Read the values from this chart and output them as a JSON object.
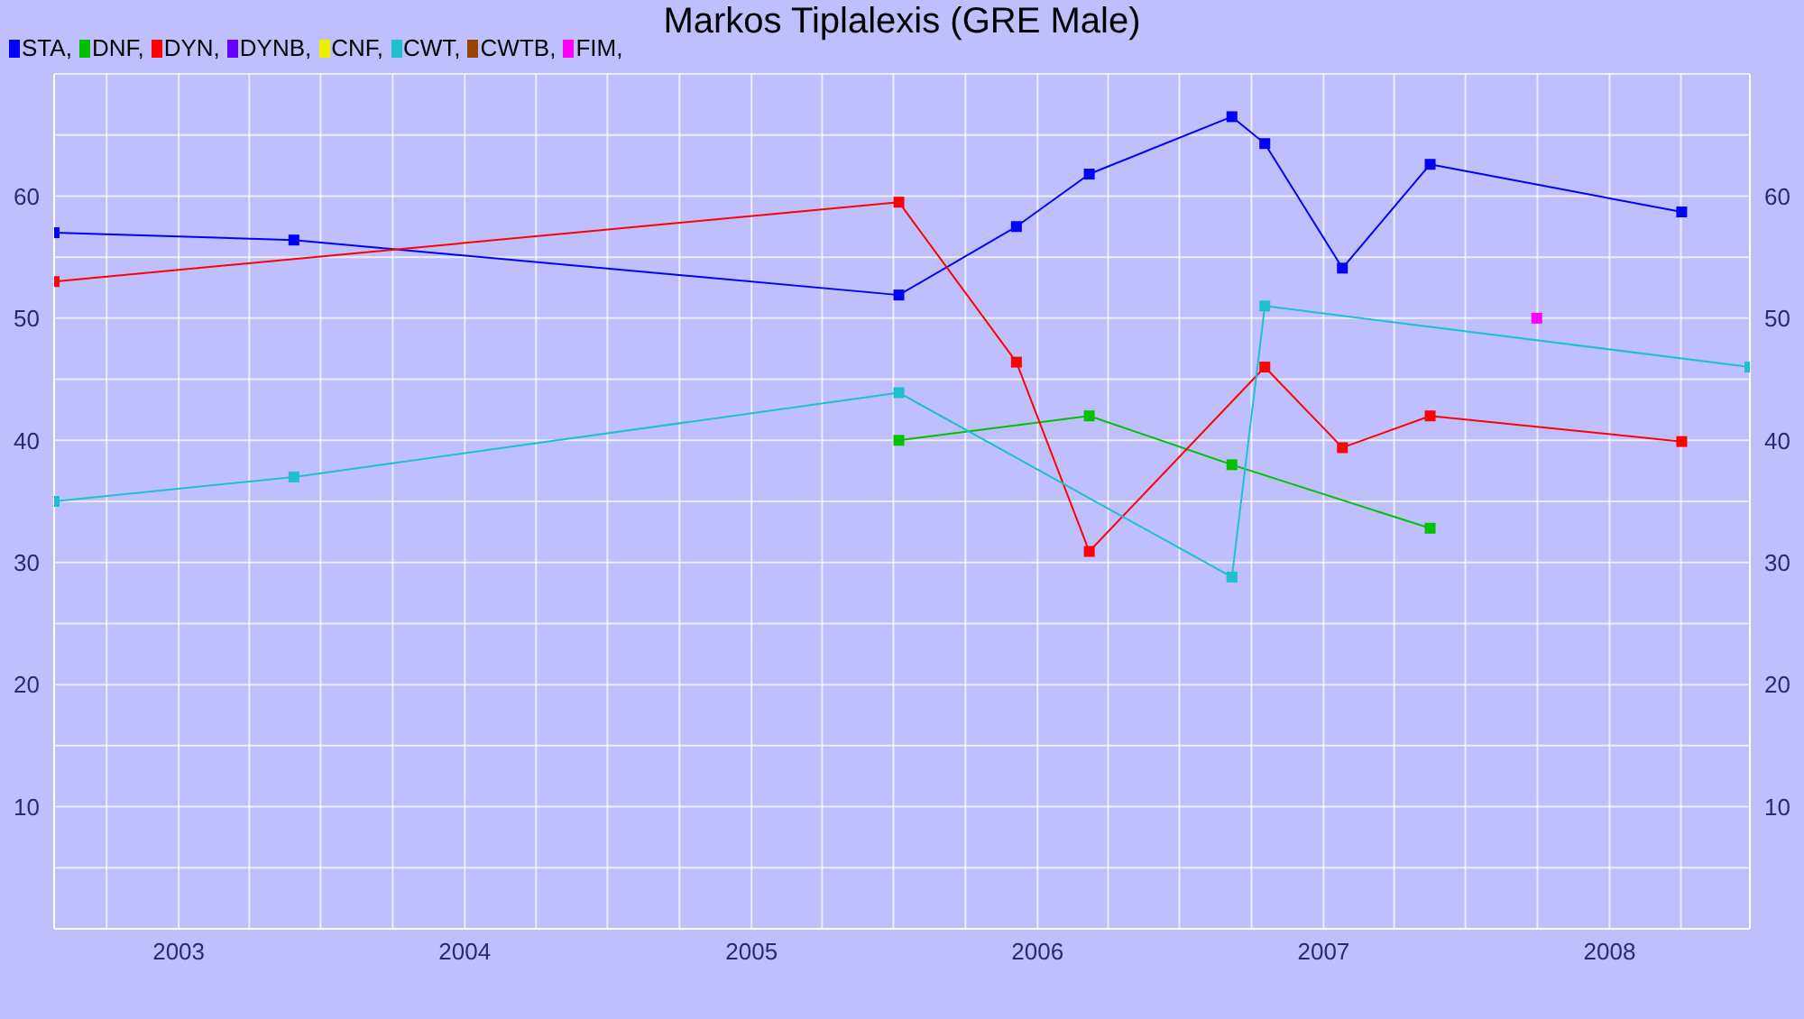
{
  "chart_data": {
    "type": "line",
    "title": "Markos Tiplalexis (GRE Male)",
    "legend": "top left",
    "marker": "square",
    "line_style": "solid",
    "grid": true,
    "xlim": [
      "2002-07-26",
      "2008-06-28"
    ],
    "xticks": [
      {
        "value": "2002-10-01",
        "label": null
      },
      {
        "value": "2003",
        "label": "2003"
      },
      {
        "value": "2003-04-01",
        "label": null
      },
      {
        "value": "2003-07-01",
        "label": null
      },
      {
        "value": "2003-10-01",
        "label": null
      },
      {
        "value": "2004",
        "label": "2004"
      },
      {
        "value": "2004-04-01",
        "label": null
      },
      {
        "value": "2004-07-01",
        "label": null
      },
      {
        "value": "2004-10-01",
        "label": null
      },
      {
        "value": "2005",
        "label": "2005"
      },
      {
        "value": "2005-04-01",
        "label": null
      },
      {
        "value": "2005-07-01",
        "label": null
      },
      {
        "value": "2005-10-01",
        "label": null
      },
      {
        "value": "2006",
        "label": "2006"
      },
      {
        "value": "2006-04-01",
        "label": null
      },
      {
        "value": "2006-07-01",
        "label": null
      },
      {
        "value": "2006-10-01",
        "label": null
      },
      {
        "value": "2007",
        "label": "2007"
      },
      {
        "value": "2007-04-01",
        "label": null
      },
      {
        "value": "2007-07-01",
        "label": null
      },
      {
        "value": "2007-10-01",
        "label": null
      },
      {
        "value": "2008",
        "label": "2008"
      },
      {
        "value": "2008-04-01",
        "label": null
      }
    ],
    "ylim": [
      0,
      70
    ],
    "yticks": [
      {
        "value": 5,
        "label": null
      },
      10,
      {
        "value": 15,
        "label": null
      },
      20,
      {
        "value": 25,
        "label": null
      },
      30,
      {
        "value": 35,
        "label": null
      },
      40,
      {
        "value": 45,
        "label": null
      },
      50,
      {
        "value": 55,
        "label": null
      },
      60,
      {
        "value": 65,
        "label": null
      }
    ],
    "y2lim": [
      0,
      70
    ],
    "y2ticks": [
      10,
      20,
      30,
      40,
      50,
      60
    ],
    "series": [
      {
        "name": "STA,",
        "color": "#0000ff",
        "x": [
          "2002-07-26",
          "2003-05-28",
          "2005-07-08",
          "2005-12-05",
          "2006-03-08",
          "2006-09-06",
          "2006-10-18",
          "2007-01-25",
          "2007-05-17",
          "2008-04-02"
        ],
        "values": [
          57,
          56.4,
          51.9,
          57.5,
          61.8,
          66.5,
          64.3,
          54.1,
          62.6,
          58.7
        ]
      },
      {
        "name": "DNF,",
        "color": "#00c000",
        "x": [
          "2005-07-08",
          "2006-03-08",
          "2006-09-06",
          "2007-05-17"
        ],
        "values": [
          40,
          42,
          38,
          32.8
        ]
      },
      {
        "name": "DYN,",
        "color": "#ff0000",
        "x": [
          "2002-07-26",
          "2005-07-08",
          "2005-12-05",
          "2006-03-08",
          "2006-10-18",
          "2007-01-25",
          "2007-05-17",
          "2008-04-02"
        ],
        "values": [
          53,
          59.5,
          46.4,
          30.9,
          46,
          39.4,
          42,
          39.9
        ]
      },
      {
        "name": "DYNB,",
        "color": "#6600ff"
      },
      {
        "name": "CNF,",
        "color": "#eeee00"
      },
      {
        "name": "CWT,",
        "color": "#1ec0d0",
        "x": [
          "2002-07-26",
          "2003-05-28",
          "2005-07-08",
          "2006-09-06",
          "2006-10-18",
          "2008-06-28"
        ],
        "values": [
          35,
          37,
          43.9,
          28.8,
          51,
          46
        ]
      },
      {
        "name": "CWTB,",
        "color": "#994400"
      },
      {
        "name": "FIM,",
        "color": "#ff00ff",
        "x": [
          "2007-09-30"
        ],
        "values": [
          50
        ]
      }
    ]
  }
}
